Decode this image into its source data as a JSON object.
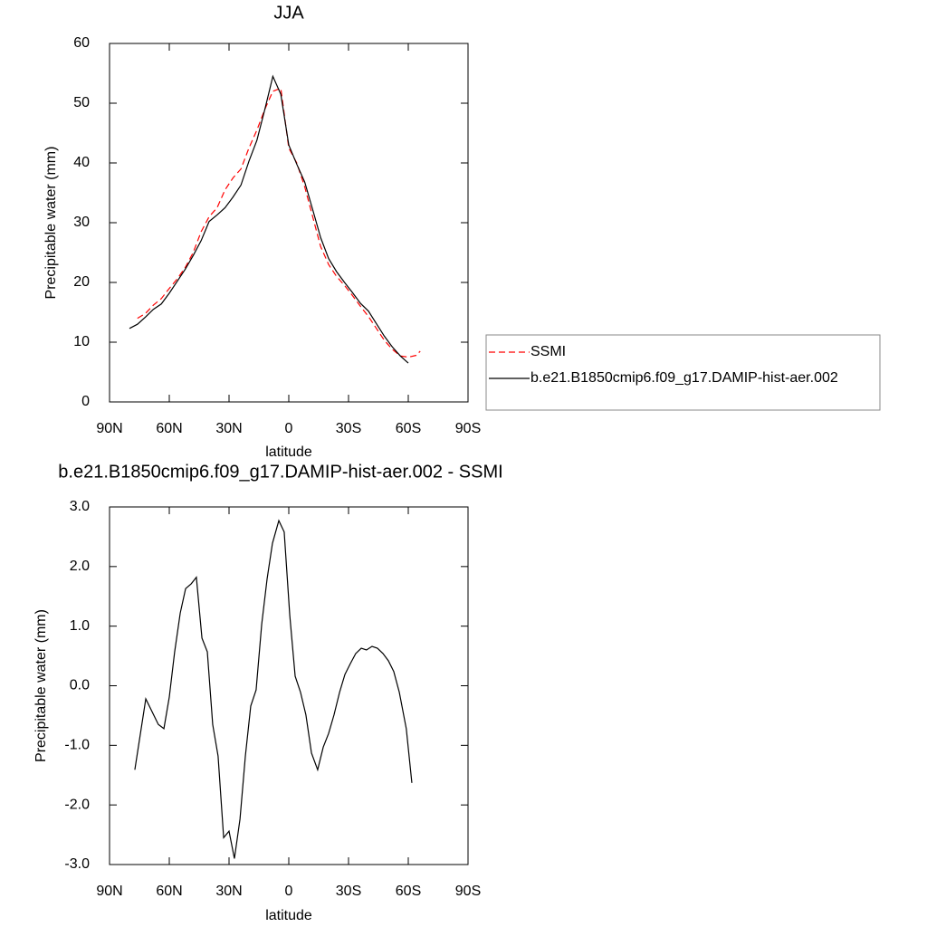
{
  "chart_data": [
    {
      "type": "line",
      "title": "JJA",
      "xlabel": "latitude",
      "ylabel": "Precipitable water (mm)",
      "x": [
        80,
        76,
        72,
        68,
        64,
        60,
        56,
        52,
        48,
        44,
        40,
        36,
        32,
        28,
        24,
        20,
        16,
        12,
        8,
        4,
        0,
        -4,
        -8,
        -12,
        -16,
        -20,
        -24,
        -28,
        -32,
        -36,
        -40,
        -44,
        -48,
        -52,
        -56,
        -60,
        -64,
        -66
      ],
      "series": [
        {
          "name": "SSMI",
          "color": "#ff0000",
          "dash": "dashed",
          "values": [
            null,
            14.0,
            14.8,
            16.2,
            17.3,
            19.0,
            20.6,
            22.5,
            25.0,
            28.5,
            31.0,
            32.5,
            35.5,
            37.5,
            39.0,
            42.5,
            45.5,
            49.0,
            52.0,
            52.5,
            42.5,
            40.0,
            36.0,
            31.0,
            26.0,
            23.0,
            21.0,
            19.5,
            17.8,
            16.0,
            14.3,
            12.3,
            10.3,
            8.8,
            7.7,
            7.5,
            7.8,
            8.5
          ]
        },
        {
          "name": "b.e21.B1850cmip6.f09_g17.DAMIP-hist-aer.002",
          "color": "#000000",
          "dash": "solid",
          "values": [
            12.3,
            13.0,
            14.2,
            15.5,
            16.4,
            18.2,
            20.2,
            22.2,
            24.5,
            27.0,
            30.2,
            31.3,
            32.5,
            34.3,
            36.3,
            40.3,
            43.8,
            49.0,
            54.5,
            51.5,
            43.0,
            39.8,
            36.8,
            32.2,
            27.5,
            24.0,
            21.8,
            20.0,
            18.3,
            16.5,
            15.2,
            13.1,
            11.0,
            9.2,
            7.7,
            6.5,
            null,
            null
          ]
        }
      ],
      "xlim": [
        90,
        -90
      ],
      "xticks": [
        {
          "value": 90,
          "label": "90N"
        },
        {
          "value": 60,
          "label": "60N"
        },
        {
          "value": 30,
          "label": "30N"
        },
        0,
        {
          "value": -30,
          "label": "30S"
        },
        {
          "value": -60,
          "label": "60S"
        },
        {
          "value": -90,
          "label": "90S"
        }
      ],
      "ylim": [
        0,
        60
      ],
      "yticks": [
        0,
        10,
        20,
        30,
        40,
        50,
        60
      ],
      "legend": "outside-right"
    },
    {
      "type": "line",
      "title": "b.e21.B1850cmip6.f09_g17.DAMIP-hist-aer.002 - SSMI",
      "xlabel": "latitude",
      "ylabel": "Precipitable water (mm)",
      "x": [
        77.3,
        71.8,
        65.5,
        62.7,
        60,
        57.3,
        54.5,
        51.8,
        49,
        46.4,
        43.6,
        40.9,
        38.2,
        35.5,
        32.7,
        30,
        27.3,
        24.5,
        21.8,
        19.1,
        16.4,
        13.6,
        10.9,
        8.2,
        5,
        2.3,
        -0.5,
        -3.2,
        -5.9,
        -8.6,
        -11.4,
        -14.5,
        -17.3,
        -20,
        -22.7,
        -25.5,
        -28.2,
        -30.9,
        -33.6,
        -36.4,
        -39,
        -41.8,
        -44.5,
        -47.3,
        -50,
        -52.7,
        -55.5,
        -59,
        -61.8
      ],
      "values": [
        -1.41,
        -0.22,
        -0.65,
        -0.72,
        -0.19,
        0.57,
        1.22,
        1.63,
        1.71,
        1.82,
        0.8,
        0.57,
        -0.65,
        -1.18,
        -2.55,
        -2.44,
        -2.9,
        -2.24,
        -1.18,
        -0.34,
        -0.07,
        1.03,
        1.79,
        2.39,
        2.77,
        2.58,
        1.18,
        0.16,
        -0.11,
        -0.49,
        -1.13,
        -1.41,
        -1.03,
        -0.8,
        -0.49,
        -0.11,
        0.19,
        0.37,
        0.54,
        0.63,
        0.6,
        0.66,
        0.63,
        0.54,
        0.42,
        0.24,
        -0.11,
        -0.72,
        -1.63
      ],
      "color": "#000000",
      "xlim": [
        90,
        -90
      ],
      "xticks": [
        {
          "value": 90,
          "label": "90N"
        },
        {
          "value": 60,
          "label": "60N"
        },
        {
          "value": 30,
          "label": "30N"
        },
        0,
        {
          "value": -30,
          "label": "30S"
        },
        {
          "value": -60,
          "label": "60S"
        },
        {
          "value": -90,
          "label": "90S"
        }
      ],
      "ylim": [
        -3,
        3
      ],
      "yticks": [
        {
          "value": -3,
          "label": "-3.0"
        },
        {
          "value": -2,
          "label": "-2.0"
        },
        {
          "value": -1,
          "label": "-1.0"
        },
        {
          "value": 0,
          "label": "0.0"
        },
        {
          "value": 1,
          "label": "1.0"
        },
        {
          "value": 2,
          "label": "2.0"
        },
        {
          "value": 3,
          "label": "3.0"
        }
      ]
    }
  ]
}
